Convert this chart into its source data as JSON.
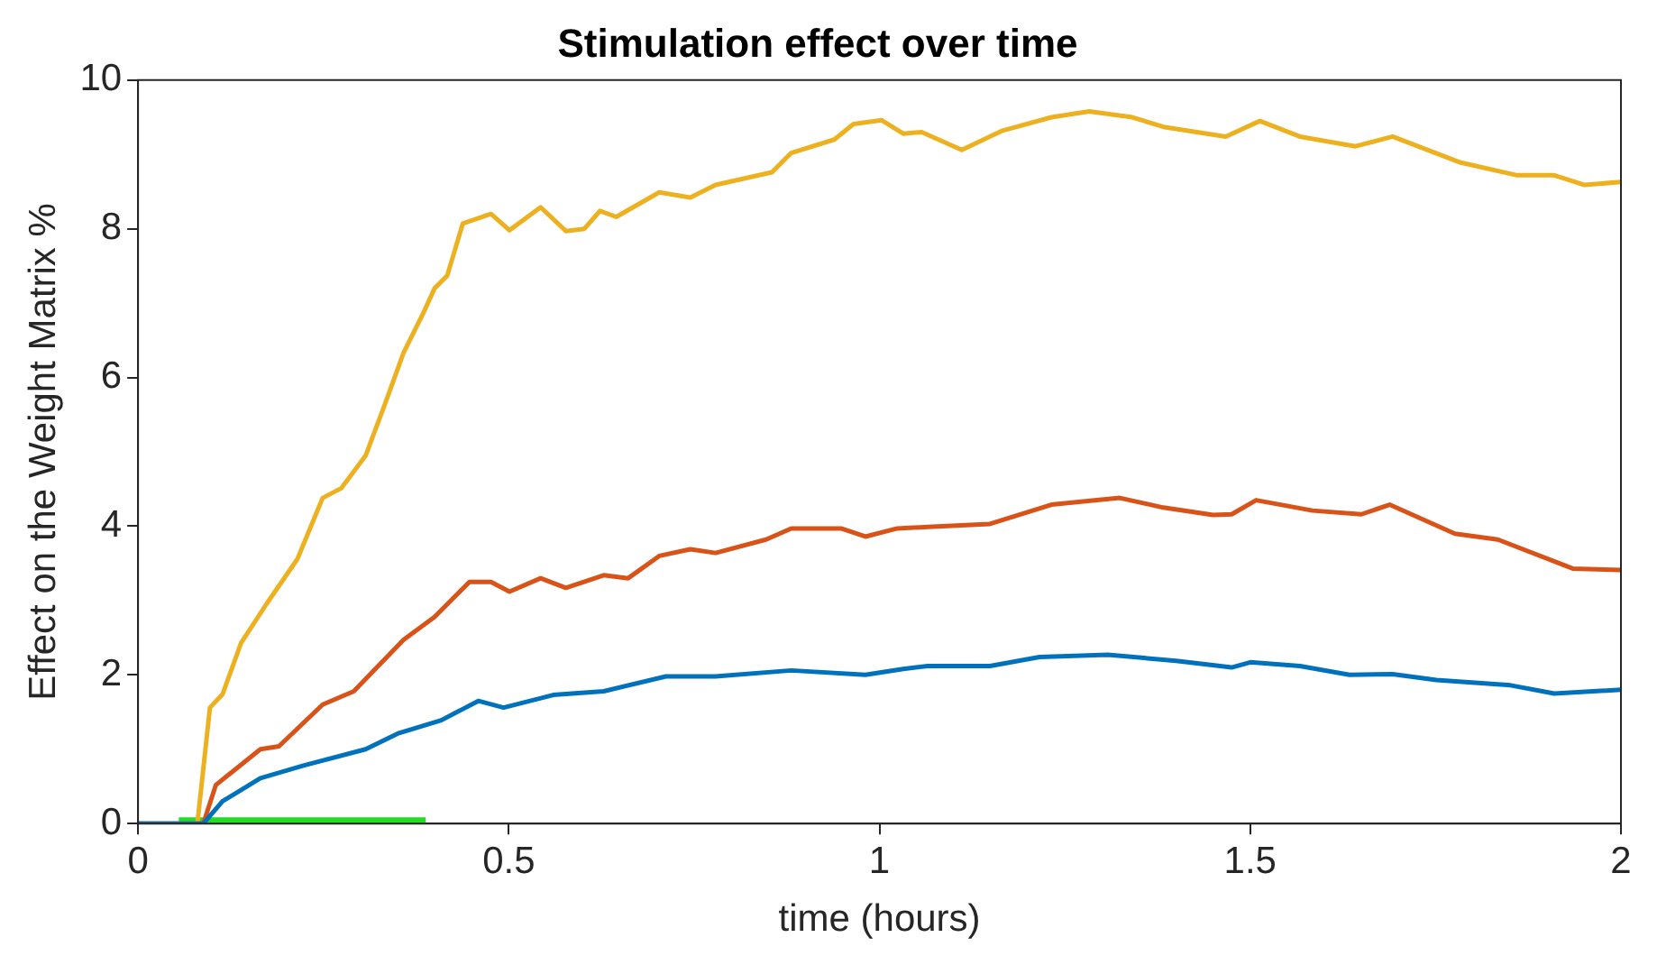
{
  "chart_data": {
    "type": "line",
    "title": "Stimulation effect over time",
    "xlabel": "time (hours)",
    "ylabel": "Effect on the Weight Matrix %",
    "xlim": [
      0,
      2
    ],
    "xticks": [
      0,
      0.5,
      1,
      1.5,
      2
    ],
    "ylim": [
      0,
      10
    ],
    "yticks": [
      0,
      2,
      4,
      6,
      8,
      10
    ],
    "grid": false,
    "legend": false,
    "marker": "none",
    "line_style": "solid",
    "series": [
      {
        "color": "#0072bd",
        "x": [
          0,
          0.088,
          0.114,
          0.165,
          0.223,
          0.307,
          0.35,
          0.409,
          0.459,
          0.493,
          0.56,
          0.628,
          0.712,
          0.779,
          0.881,
          0.981,
          1.032,
          1.065,
          1.149,
          1.216,
          1.308,
          1.4,
          1.475,
          1.5,
          1.567,
          1.634,
          1.692,
          1.751,
          1.851,
          1.91,
          2.0
        ],
        "values": [
          0,
          0,
          0.3,
          0.61,
          0.78,
          1.0,
          1.21,
          1.39,
          1.65,
          1.56,
          1.73,
          1.78,
          1.98,
          1.98,
          2.06,
          2.0,
          2.08,
          2.12,
          2.12,
          2.24,
          2.27,
          2.19,
          2.1,
          2.17,
          2.12,
          2.0,
          2.01,
          1.93,
          1.86,
          1.75,
          1.8
        ]
      },
      {
        "color": "#d95319",
        "x": [
          0,
          0.088,
          0.105,
          0.165,
          0.19,
          0.249,
          0.291,
          0.358,
          0.4,
          0.447,
          0.476,
          0.501,
          0.543,
          0.577,
          0.628,
          0.661,
          0.703,
          0.745,
          0.779,
          0.847,
          0.881,
          0.948,
          0.981,
          1.024,
          1.065,
          1.149,
          1.232,
          1.324,
          1.383,
          1.45,
          1.475,
          1.508,
          1.584,
          1.65,
          1.688,
          1.776,
          1.834,
          1.935,
          2.0
        ],
        "values": [
          0,
          0,
          0.52,
          1.0,
          1.04,
          1.6,
          1.78,
          2.47,
          2.78,
          3.25,
          3.25,
          3.12,
          3.3,
          3.17,
          3.34,
          3.3,
          3.6,
          3.69,
          3.64,
          3.82,
          3.97,
          3.97,
          3.86,
          3.97,
          3.99,
          4.03,
          4.29,
          4.38,
          4.25,
          4.15,
          4.16,
          4.35,
          4.21,
          4.16,
          4.29,
          3.9,
          3.82,
          3.43,
          3.41
        ]
      },
      {
        "color": "#edb120",
        "x": [
          0,
          0.08,
          0.097,
          0.114,
          0.139,
          0.173,
          0.215,
          0.249,
          0.274,
          0.307,
          0.333,
          0.358,
          0.384,
          0.4,
          0.417,
          0.438,
          0.476,
          0.501,
          0.543,
          0.577,
          0.602,
          0.623,
          0.645,
          0.703,
          0.745,
          0.779,
          0.855,
          0.881,
          0.939,
          0.965,
          1.003,
          1.032,
          1.057,
          1.111,
          1.166,
          1.232,
          1.283,
          1.341,
          1.383,
          1.467,
          1.513,
          1.567,
          1.642,
          1.692,
          1.784,
          1.86,
          1.91,
          1.951,
          2.0
        ],
        "values": [
          0,
          0,
          1.56,
          1.74,
          2.43,
          2.95,
          3.56,
          4.38,
          4.51,
          4.95,
          5.64,
          6.33,
          6.85,
          7.2,
          7.37,
          8.07,
          8.2,
          7.98,
          8.29,
          7.97,
          8.0,
          8.24,
          8.16,
          8.49,
          8.42,
          8.59,
          8.76,
          9.02,
          9.2,
          9.41,
          9.46,
          9.28,
          9.3,
          9.06,
          9.32,
          9.5,
          9.58,
          9.5,
          9.37,
          9.24,
          9.45,
          9.24,
          9.11,
          9.24,
          8.89,
          8.72,
          8.72,
          8.59,
          8.63
        ]
      },
      {
        "color": "#22dd22",
        "x": [
          0.055,
          0.388
        ],
        "values": [
          0,
          0
        ]
      }
    ]
  }
}
